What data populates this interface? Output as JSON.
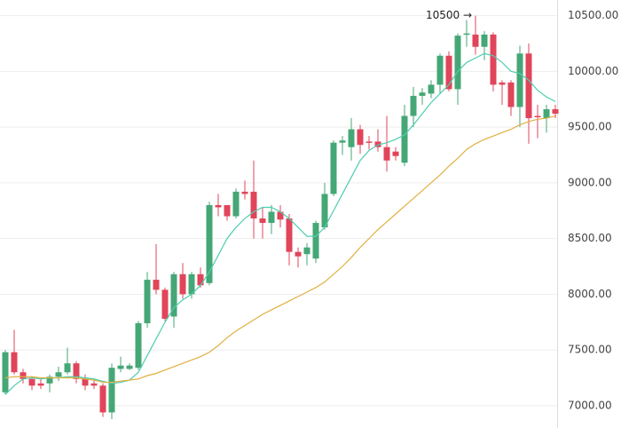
{
  "chart_data": {
    "type": "candlestick",
    "open": [
      7120,
      7480,
      7300,
      7240,
      7200,
      7200,
      7260,
      7300,
      7380,
      7240,
      7200,
      7180,
      6940,
      7330,
      7330,
      7340,
      7740,
      8130,
      8040,
      7800,
      8180,
      8000,
      8180,
      8100,
      8800,
      8800,
      8700,
      8920,
      8920,
      8680,
      8640,
      8740,
      8680,
      8380,
      8360,
      8320,
      8600,
      8900,
      9360,
      9320,
      9480,
      9370,
      9370,
      9320,
      9280,
      9180,
      9600,
      9780,
      9800,
      9880,
      10140,
      9840,
      10330,
      10330,
      10220,
      10330,
      9900,
      9900,
      9680,
      10160,
      9600,
      9580,
      9660
    ],
    "high": [
      7500,
      7680,
      7330,
      7260,
      7240,
      7280,
      7350,
      7520,
      7400,
      7280,
      7240,
      7200,
      7380,
      7440,
      7380,
      7760,
      8200,
      8450,
      8060,
      8200,
      8280,
      8200,
      8240,
      8830,
      8900,
      8780,
      8950,
      9020,
      9200,
      8780,
      8800,
      8800,
      8720,
      8420,
      8460,
      8660,
      9000,
      9380,
      9420,
      9580,
      9520,
      9420,
      9480,
      9600,
      9320,
      9700,
      9860,
      9850,
      9920,
      10160,
      10180,
      10340,
      10460,
      10500,
      10360,
      10350,
      9920,
      9920,
      10230,
      10250,
      9700,
      9700,
      9700
    ],
    "low": [
      7100,
      7280,
      7200,
      7140,
      7150,
      7120,
      7220,
      7280,
      7200,
      7140,
      7150,
      6900,
      6880,
      7300,
      7320,
      7320,
      7700,
      8000,
      7760,
      7700,
      7960,
      7960,
      8060,
      8080,
      8700,
      8660,
      8680,
      8850,
      8500,
      8500,
      8540,
      8600,
      8260,
      8240,
      8260,
      8280,
      8580,
      8880,
      9250,
      9200,
      9260,
      9300,
      9280,
      9100,
      9200,
      9150,
      9500,
      9700,
      9760,
      9800,
      9820,
      9700,
      10220,
      10150,
      10100,
      9820,
      9700,
      9600,
      9500,
      9350,
      9400,
      9450,
      9580
    ],
    "close": [
      7480,
      7300,
      7240,
      7180,
      7180,
      7260,
      7300,
      7380,
      7240,
      7180,
      7180,
      6940,
      7340,
      7360,
      7360,
      7740,
      8130,
      8040,
      7780,
      8180,
      8000,
      8180,
      8080,
      8800,
      8780,
      8700,
      8920,
      8900,
      8680,
      8640,
      8740,
      8670,
      8380,
      8340,
      8420,
      8640,
      8900,
      9360,
      9380,
      9480,
      9340,
      9360,
      9320,
      9200,
      9240,
      9600,
      9780,
      9810,
      9880,
      10140,
      9840,
      10320,
      10340,
      10220,
      10330,
      9880,
      9880,
      9680,
      10160,
      9580,
      9590,
      9660,
      9620
    ],
    "up_color": "#45a776",
    "down_color": "#e0455a",
    "lines": [
      {
        "color": "#4ecdb0",
        "values": [
          7100,
          7180,
          7240,
          7250,
          7240,
          7250,
          7250,
          7260,
          7260,
          7250,
          7240,
          7220,
          7200,
          7210,
          7230,
          7300,
          7450,
          7600,
          7750,
          7880,
          7950,
          8000,
          8080,
          8200,
          8350,
          8500,
          8600,
          8680,
          8740,
          8780,
          8780,
          8740,
          8680,
          8600,
          8520,
          8520,
          8600,
          8750,
          8900,
          9050,
          9200,
          9290,
          9340,
          9360,
          9390,
          9430,
          9520,
          9620,
          9720,
          9800,
          9880,
          10000,
          10080,
          10120,
          10160,
          10140,
          10080,
          10000,
          9980,
          9920,
          9830,
          9770,
          9730
        ]
      },
      {
        "color": "#e0b040",
        "values": [
          7250,
          7260,
          7260,
          7260,
          7250,
          7250,
          7250,
          7250,
          7250,
          7240,
          7230,
          7210,
          7210,
          7220,
          7230,
          7240,
          7270,
          7290,
          7320,
          7350,
          7380,
          7410,
          7440,
          7480,
          7540,
          7610,
          7670,
          7720,
          7770,
          7820,
          7860,
          7900,
          7940,
          7980,
          8020,
          8060,
          8110,
          8180,
          8250,
          8330,
          8420,
          8500,
          8580,
          8650,
          8720,
          8790,
          8860,
          8930,
          9000,
          9070,
          9150,
          9220,
          9300,
          9350,
          9390,
          9420,
          9450,
          9480,
          9520,
          9550,
          9570,
          9580,
          9600
        ]
      }
    ],
    "annotation": "10500 →",
    "ylim": [
      6800,
      10640
    ],
    "yticks": [
      {
        "value": 7000,
        "label": "7000.00"
      },
      {
        "value": 7500,
        "label": "7500.00"
      },
      {
        "value": 8000,
        "label": "8000.00"
      },
      {
        "value": 8500,
        "label": "8500.00"
      },
      {
        "value": 9000,
        "label": "9000.00"
      },
      {
        "value": 9500,
        "label": "9500.00"
      },
      {
        "value": 10000,
        "label": "10000.00"
      },
      {
        "value": 10500,
        "label": "10500.00"
      }
    ],
    "grid": true
  }
}
